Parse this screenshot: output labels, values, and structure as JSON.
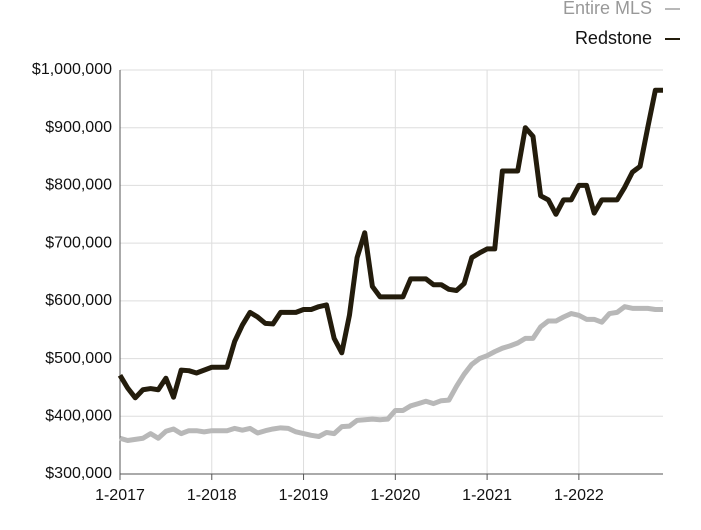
{
  "chart_data": {
    "type": "line",
    "categories": [
      "1-2017",
      null,
      null,
      null,
      null,
      null,
      null,
      null,
      null,
      null,
      null,
      null,
      "1-2018",
      null,
      null,
      null,
      null,
      null,
      null,
      null,
      null,
      null,
      null,
      null,
      "1-2019",
      null,
      null,
      null,
      null,
      null,
      null,
      null,
      null,
      null,
      null,
      null,
      "1-2020",
      null,
      null,
      null,
      null,
      null,
      null,
      null,
      null,
      null,
      null,
      null,
      "1-2021",
      null,
      null,
      null,
      null,
      null,
      null,
      null,
      null,
      null,
      null,
      null,
      "1-2022",
      null,
      null,
      null,
      null,
      null,
      null,
      null,
      null,
      null,
      null,
      null
    ],
    "series": [
      {
        "name": "Entire MLS",
        "color": "#b8b8b8",
        "values": [
          362000,
          358000,
          360000,
          362000,
          370000,
          362000,
          374000,
          378000,
          370000,
          375000,
          375000,
          373000,
          375000,
          375000,
          375000,
          379000,
          376000,
          379000,
          371000,
          375000,
          378000,
          380000,
          379000,
          373000,
          370000,
          367000,
          365000,
          372000,
          370000,
          382000,
          383000,
          393000,
          394000,
          395000,
          394000,
          395000,
          410000,
          410000,
          418000,
          422000,
          426000,
          422000,
          427000,
          428000,
          452000,
          473000,
          490000,
          500000,
          505000,
          512000,
          518000,
          522000,
          527000,
          535000,
          535000,
          555000,
          565000,
          565000,
          572000,
          578000,
          575000,
          568000,
          568000,
          563000,
          578000,
          580000,
          590000,
          587000,
          587000,
          587000,
          585000,
          585000
        ]
      },
      {
        "name": "Redstone",
        "color": "#231c0c",
        "values": [
          471000,
          449000,
          432000,
          446000,
          448000,
          446000,
          466000,
          433000,
          480000,
          479000,
          475000,
          480000,
          485000,
          485000,
          485000,
          530000,
          558000,
          580000,
          572000,
          561000,
          560000,
          580000,
          580000,
          580000,
          585000,
          585000,
          590000,
          593000,
          535000,
          510000,
          575000,
          675000,
          718000,
          625000,
          607000,
          607000,
          607000,
          607000,
          638000,
          638000,
          638000,
          628000,
          628000,
          620000,
          618000,
          630000,
          675000,
          683000,
          690000,
          690000,
          825000,
          825000,
          825000,
          900000,
          885000,
          782000,
          775000,
          750000,
          775000,
          775000,
          800000,
          800000,
          752000,
          775000,
          775000,
          775000,
          797000,
          823000,
          833000,
          900000,
          965000,
          965000
        ]
      }
    ],
    "ylim": [
      300000,
      1000000
    ],
    "yticks": [
      {
        "value": 300000,
        "label": "$300,000"
      },
      {
        "value": 400000,
        "label": "$400,000"
      },
      {
        "value": 500000,
        "label": "$500,000"
      },
      {
        "value": 600000,
        "label": "$600,000"
      },
      {
        "value": 700000,
        "label": "$700,000"
      },
      {
        "value": 800000,
        "label": "$800,000"
      },
      {
        "value": 900000,
        "label": "$900,000"
      },
      {
        "value": 1000000,
        "label": "$1,000,000"
      }
    ],
    "grid": true
  }
}
